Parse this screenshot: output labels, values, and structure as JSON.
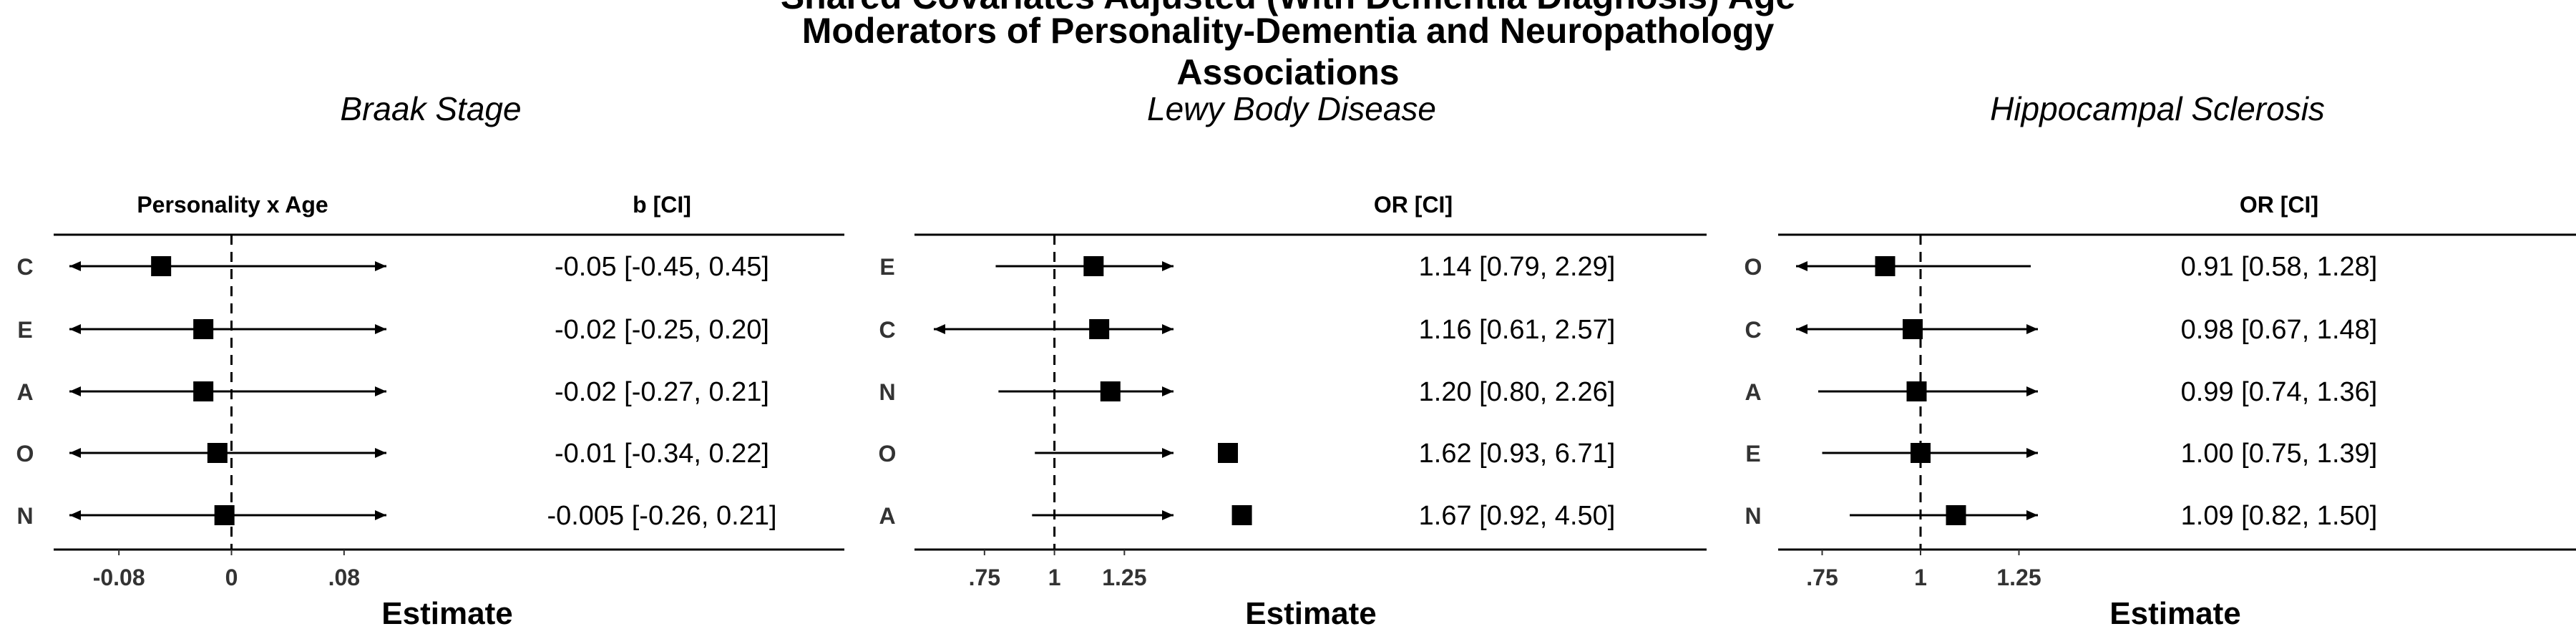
{
  "title_lines": [
    "Shared Covariates Adjusted (With Dementia Diagnosis) Age",
    "Moderators of Personality-Dementia and Neuropathology",
    "Associations"
  ],
  "chart_data": [
    {
      "type": "forest",
      "subtitle": "Braak Stage",
      "label_header": "Personality x Age",
      "ci_header": "b [CI]",
      "xlabel": "Estimate",
      "reference_line": 0,
      "xlim": [
        -0.105,
        0.105
      ],
      "xticks": [
        -0.08,
        0,
        0.08
      ],
      "xtick_labels": [
        "-0.08",
        "0",
        ".08"
      ],
      "rows": [
        {
          "label": "C",
          "estimate": -0.05,
          "lower": -0.45,
          "upper": 0.45,
          "ci_text": "-0.05 [-0.45, 0.45]"
        },
        {
          "label": "E",
          "estimate": -0.02,
          "lower": -0.25,
          "upper": 0.2,
          "ci_text": "-0.02 [-0.25, 0.20]"
        },
        {
          "label": "A",
          "estimate": -0.02,
          "lower": -0.27,
          "upper": 0.21,
          "ci_text": "-0.02 [-0.27, 0.21]"
        },
        {
          "label": "O",
          "estimate": -0.01,
          "lower": -0.34,
          "upper": 0.22,
          "ci_text": "-0.01 [-0.34, 0.22]"
        },
        {
          "label": "N",
          "estimate": -0.005,
          "lower": -0.26,
          "upper": 0.21,
          "ci_text": "-0.005 [-0.26, 0.21]"
        }
      ]
    },
    {
      "type": "forest",
      "subtitle": "Lewy Body Disease",
      "label_header": "",
      "ci_header": "OR [CI]",
      "xlabel": "Estimate",
      "reference_line": 1,
      "xlim": [
        0.62,
        1.4
      ],
      "xticks": [
        0.75,
        1,
        1.25
      ],
      "xtick_labels": [
        ".75",
        "1",
        "1.25"
      ],
      "rows": [
        {
          "label": "E",
          "estimate": 1.14,
          "lower": 0.79,
          "upper": 2.29,
          "ci_text": "1.14 [0.79, 2.29]"
        },
        {
          "label": "C",
          "estimate": 1.16,
          "lower": 0.61,
          "upper": 2.57,
          "ci_text": "1.16 [0.61, 2.57]"
        },
        {
          "label": "N",
          "estimate": 1.2,
          "lower": 0.8,
          "upper": 2.26,
          "ci_text": "1.20 [0.80, 2.26]"
        },
        {
          "label": "O",
          "estimate": 1.62,
          "lower": 0.93,
          "upper": 6.71,
          "ci_text": "1.62 [0.93, 6.71]"
        },
        {
          "label": "A",
          "estimate": 1.67,
          "lower": 0.92,
          "upper": 4.5,
          "ci_text": "1.67 [0.92, 4.50]"
        }
      ]
    },
    {
      "type": "forest",
      "subtitle": "Hippocampal Sclerosis",
      "label_header": "",
      "ci_header": "OR [CI]",
      "xlabel": "Estimate",
      "reference_line": 1,
      "xlim": [
        0.72,
        1.28
      ],
      "xticks": [
        0.75,
        1,
        1.25
      ],
      "xtick_labels": [
        ".75",
        "1",
        "1.25"
      ],
      "rows": [
        {
          "label": "O",
          "estimate": 0.91,
          "lower": 0.58,
          "upper": 1.28,
          "ci_text": "0.91 [0.58, 1.28]"
        },
        {
          "label": "C",
          "estimate": 0.98,
          "lower": 0.67,
          "upper": 1.48,
          "ci_text": "0.98 [0.67, 1.48]"
        },
        {
          "label": "A",
          "estimate": 0.99,
          "lower": 0.74,
          "upper": 1.36,
          "ci_text": "0.99 [0.74, 1.36]"
        },
        {
          "label": "E",
          "estimate": 1.0,
          "lower": 0.75,
          "upper": 1.39,
          "ci_text": "1.00 [0.75, 1.39]"
        },
        {
          "label": "N",
          "estimate": 1.09,
          "lower": 0.82,
          "upper": 1.5,
          "ci_text": "1.09 [0.82, 1.50]"
        }
      ]
    }
  ]
}
